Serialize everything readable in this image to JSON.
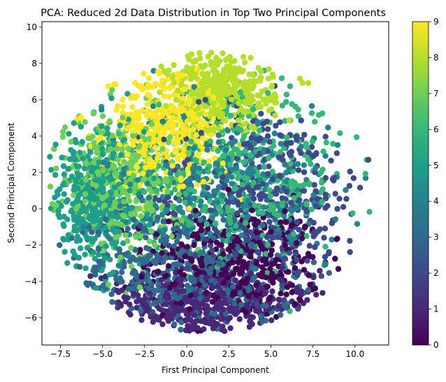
{
  "chart_data": {
    "type": "scatter",
    "title": "PCA: Reduced 2d Data Distribution in Top Two Principal Components",
    "xlabel": "First Principal Component",
    "ylabel": "Second Principal Component",
    "xlim": [
      -8.6,
      12.0
    ],
    "ylim": [
      -7.5,
      10.3
    ],
    "x_ticks": [
      -7.5,
      -5.0,
      -2.5,
      0.0,
      2.5,
      5.0,
      7.5,
      10.0
    ],
    "x_tick_labels": [
      "−7.5",
      "−5.0",
      "−2.5",
      "0.0",
      "2.5",
      "5.0",
      "7.5",
      "10.0"
    ],
    "y_ticks": [
      -6,
      -4,
      -2,
      0,
      2,
      4,
      6,
      8,
      10
    ],
    "y_tick_labels": [
      "−6",
      "−4",
      "−2",
      "0",
      "2",
      "4",
      "6",
      "8",
      "10"
    ],
    "grid": false,
    "colormap": "viridis",
    "colorbar": {
      "range": [
        0,
        9
      ],
      "ticks": [
        0,
        1,
        2,
        3,
        4,
        5,
        6,
        7,
        8,
        9
      ],
      "tick_labels": [
        "0",
        "1",
        "2",
        "3",
        "4",
        "5",
        "6",
        "7",
        "8",
        "9"
      ],
      "stops": [
        "#440154",
        "#482878",
        "#3e4989",
        "#31688e",
        "#26828e",
        "#1f9e89",
        "#35b779",
        "#6ece58",
        "#b5de2b",
        "#fde725"
      ]
    },
    "clusters": [
      {
        "class": 0,
        "center": [
          2.8,
          -3.0
        ],
        "spread": [
          2.6,
          1.6
        ],
        "extent": "x 0 to 9, y -5.2 to 0"
      },
      {
        "class": 1,
        "center": [
          1.0,
          -5.2
        ],
        "spread": [
          3.2,
          0.9
        ],
        "extent": "x -4 to 7, y -6.7 to -3.5"
      },
      {
        "class": 2,
        "center": [
          4.5,
          0.5
        ],
        "spread": [
          3.2,
          2.6
        ],
        "extent": "x -1 to 10.5, y -5 to 6"
      },
      {
        "class": 3,
        "center": [
          -0.5,
          -3.5
        ],
        "spread": [
          3.5,
          1.6
        ],
        "extent": "x -6 to 8, y -6 to -1"
      },
      {
        "class": 4,
        "center": [
          2.0,
          1.0
        ],
        "spread": [
          3.5,
          2.4
        ],
        "extent": "x -3 to 9, y -3 to 6"
      },
      {
        "class": 5,
        "center": [
          -5.5,
          0.5
        ],
        "spread": [
          1.5,
          2.0
        ],
        "extent": "x -8 to -3, y -3 to 4.5"
      },
      {
        "class": 6,
        "center": [
          3.5,
          1.5
        ],
        "spread": [
          3.0,
          2.3
        ],
        "extent": "x -3 to 10, y -3 to 6.5"
      },
      {
        "class": 7,
        "center": [
          -4.0,
          1.5
        ],
        "spread": [
          1.8,
          1.8
        ],
        "extent": "x -7.5 to -1, y -2 to 5"
      },
      {
        "class": 8,
        "center": [
          2.0,
          6.5
        ],
        "spread": [
          1.6,
          1.2
        ],
        "extent": "x -1 to 5, y 4 to 9.5"
      },
      {
        "class": 9,
        "center": [
          -1.0,
          4.5
        ],
        "spread": [
          1.8,
          1.6
        ],
        "extent": "x -5 to 3, y 1 to 8"
      }
    ]
  }
}
